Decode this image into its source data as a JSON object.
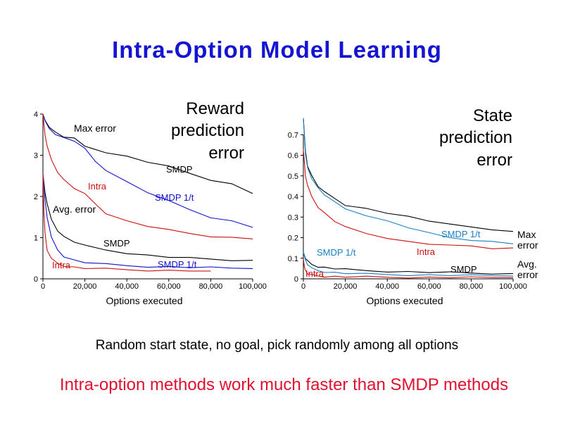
{
  "title": "Intra-Option Model Learning",
  "caption": "Random start state, no goal, pick randomly among all options",
  "conclusion": "Intra-option methods work much faster than SMDP methods",
  "colors": {
    "title": "#1414d2",
    "conclusion": "#e01030",
    "smdp": "#000000",
    "smdp_1t_left": "#1010cc",
    "smdp_1t_right": "#1a7fc4",
    "intra": "#cc1010"
  },
  "chart_data": [
    {
      "type": "line",
      "title": "Reward prediction error",
      "xlabel": "Options executed",
      "ylabel": "",
      "xlim": [
        0,
        100000
      ],
      "ylim": [
        0,
        4
      ],
      "x_ticks": [
        0,
        20000,
        40000,
        60000,
        80000,
        100000
      ],
      "x_tick_labels": [
        "0",
        "20,000",
        "40,000",
        "60,000",
        "80,000",
        "100,000"
      ],
      "y_ticks": [
        0,
        1,
        2,
        3,
        4
      ],
      "y_tick_labels": [
        "0",
        "1",
        "2",
        "3",
        "4"
      ],
      "groups": [
        {
          "label": "Max error",
          "series": [
            {
              "name": "SMDP",
              "color": "#000000",
              "x": [
                0,
                1000,
                3000,
                6000,
                10000,
                15000,
                20000,
                30000,
                40000,
                50000,
                60000,
                70000,
                80000,
                90000,
                100000
              ],
              "y": [
                4.0,
                3.85,
                3.7,
                3.55,
                3.45,
                3.4,
                3.22,
                3.08,
                2.97,
                2.84,
                2.72,
                2.56,
                2.41,
                2.3,
                2.07
              ]
            },
            {
              "name": "SMDP 1/t",
              "color": "#1010cc",
              "x": [
                0,
                1000,
                3000,
                6000,
                10000,
                15000,
                20000,
                25000,
                30000,
                40000,
                50000,
                60000,
                70000,
                80000,
                90000,
                100000
              ],
              "y": [
                4.0,
                3.82,
                3.65,
                3.52,
                3.42,
                3.35,
                3.15,
                2.85,
                2.65,
                2.35,
                2.1,
                1.88,
                1.68,
                1.5,
                1.4,
                1.25
              ]
            },
            {
              "name": "Intra",
              "color": "#cc1010",
              "x": [
                0,
                1000,
                2000,
                4000,
                7000,
                10000,
                15000,
                20000,
                25000,
                30000,
                40000,
                50000,
                60000,
                70000,
                80000,
                90000,
                100000
              ],
              "y": [
                4.0,
                3.5,
                3.2,
                2.9,
                2.6,
                2.4,
                2.2,
                2.05,
                1.82,
                1.6,
                1.4,
                1.28,
                1.18,
                1.1,
                1.04,
                1.0,
                0.97
              ]
            }
          ]
        },
        {
          "label": "Avg. error",
          "series": [
            {
              "name": "SMDP",
              "color": "#000000",
              "x": [
                0,
                1000,
                2000,
                4000,
                7000,
                10000,
                15000,
                20000,
                30000,
                40000,
                50000,
                60000,
                70000,
                80000,
                90000,
                100000
              ],
              "y": [
                2.55,
                2.1,
                1.8,
                1.45,
                1.18,
                1.02,
                0.9,
                0.8,
                0.7,
                0.63,
                0.57,
                0.53,
                0.5,
                0.48,
                0.46,
                0.45
              ]
            },
            {
              "name": "SMDP 1/t",
              "color": "#1010cc",
              "x": [
                0,
                1000,
                2000,
                4000,
                7000,
                10000,
                15000,
                20000,
                30000,
                40000,
                50000,
                60000,
                70000,
                80000,
                90000,
                100000
              ],
              "y": [
                2.55,
                1.9,
                1.5,
                1.0,
                0.7,
                0.55,
                0.45,
                0.4,
                0.35,
                0.32,
                0.3,
                0.29,
                0.28,
                0.27,
                0.26,
                0.25
              ]
            },
            {
              "name": "Intra",
              "color": "#cc1010",
              "x": [
                0,
                500,
                1000,
                2000,
                4000,
                7000,
                10000,
                15000,
                20000,
                30000,
                40000,
                50000,
                60000,
                70000,
                80000
              ],
              "y": [
                2.55,
                1.6,
                1.1,
                0.7,
                0.48,
                0.38,
                0.32,
                0.28,
                0.26,
                0.24,
                0.22,
                0.21,
                0.2,
                0.2,
                0.19
              ]
            }
          ]
        }
      ]
    },
    {
      "type": "line",
      "title": "State prediction error",
      "xlabel": "Options executed",
      "ylabel": "",
      "xlim": [
        0,
        100000
      ],
      "ylim": [
        0,
        0.8
      ],
      "x_ticks": [
        0,
        20000,
        40000,
        60000,
        80000,
        100000
      ],
      "x_tick_labels": [
        "0",
        "20,000",
        "40,000",
        "60,000",
        "80,000",
        "100,000"
      ],
      "y_ticks": [
        0,
        0.1,
        0.2,
        0.3,
        0.4,
        0.5,
        0.6,
        0.7
      ],
      "y_tick_labels": [
        "0",
        "0.1",
        "0.2",
        "0.3",
        "0.4",
        "0.5",
        "0.6",
        "0.7"
      ],
      "groups": [
        {
          "label": "Max error",
          "series": [
            {
              "name": "SMDP",
              "color": "#000000",
              "x": [
                0,
                1000,
                2000,
                4000,
                7000,
                10000,
                15000,
                20000,
                30000,
                40000,
                50000,
                60000,
                70000,
                80000,
                90000,
                100000
              ],
              "y": [
                0.78,
                0.62,
                0.55,
                0.5,
                0.45,
                0.42,
                0.39,
                0.36,
                0.34,
                0.32,
                0.3,
                0.28,
                0.27,
                0.25,
                0.24,
                0.23
              ]
            },
            {
              "name": "SMDP 1/t",
              "color": "#1a7fc4",
              "x": [
                0,
                1000,
                2000,
                4000,
                7000,
                10000,
                15000,
                20000,
                30000,
                40000,
                50000,
                60000,
                70000,
                80000,
                90000,
                100000
              ],
              "y": [
                0.78,
                0.6,
                0.54,
                0.49,
                0.44,
                0.41,
                0.37,
                0.34,
                0.31,
                0.28,
                0.25,
                0.22,
                0.2,
                0.19,
                0.18,
                0.17
              ]
            },
            {
              "name": "Intra",
              "color": "#cc1010",
              "x": [
                0,
                1000,
                2000,
                4000,
                7000,
                10000,
                15000,
                20000,
                30000,
                40000,
                50000,
                60000,
                70000,
                80000,
                90000,
                100000
              ],
              "y": [
                0.63,
                0.5,
                0.45,
                0.4,
                0.35,
                0.32,
                0.28,
                0.25,
                0.22,
                0.2,
                0.18,
                0.17,
                0.16,
                0.16,
                0.15,
                0.15
              ]
            }
          ]
        },
        {
          "label": "Avg. error",
          "series": [
            {
              "name": "SMDP",
              "color": "#000000",
              "x": [
                0,
                1000,
                2000,
                4000,
                7000,
                10000,
                15000,
                20000,
                30000,
                40000,
                50000,
                60000,
                70000,
                80000,
                90000,
                100000
              ],
              "y": [
                0.13,
                0.1,
                0.085,
                0.07,
                0.06,
                0.055,
                0.05,
                0.045,
                0.04,
                0.037,
                0.034,
                0.032,
                0.03,
                0.028,
                0.027,
                0.026
              ]
            },
            {
              "name": "SMDP 1/t",
              "color": "#1a7fc4",
              "x": [
                0,
                1000,
                2000,
                4000,
                7000,
                10000,
                15000,
                20000,
                30000,
                40000,
                50000,
                60000,
                70000,
                80000,
                90000,
                100000
              ],
              "y": [
                0.13,
                0.09,
                0.07,
                0.05,
                0.04,
                0.035,
                0.03,
                0.027,
                0.023,
                0.021,
                0.019,
                0.018,
                0.017,
                0.016,
                0.015,
                0.014
              ]
            },
            {
              "name": "Intra",
              "color": "#cc1010",
              "x": [
                0,
                500,
                1000,
                2000,
                4000,
                7000,
                10000,
                15000,
                20000,
                30000,
                40000,
                50000,
                60000,
                70000,
                80000,
                90000,
                100000
              ],
              "y": [
                0.1,
                0.06,
                0.04,
                0.025,
                0.018,
                0.014,
                0.012,
                0.011,
                0.01,
                0.009,
                0.008,
                0.008,
                0.007,
                0.007,
                0.006,
                0.006,
                0.006
              ]
            }
          ]
        }
      ]
    }
  ]
}
